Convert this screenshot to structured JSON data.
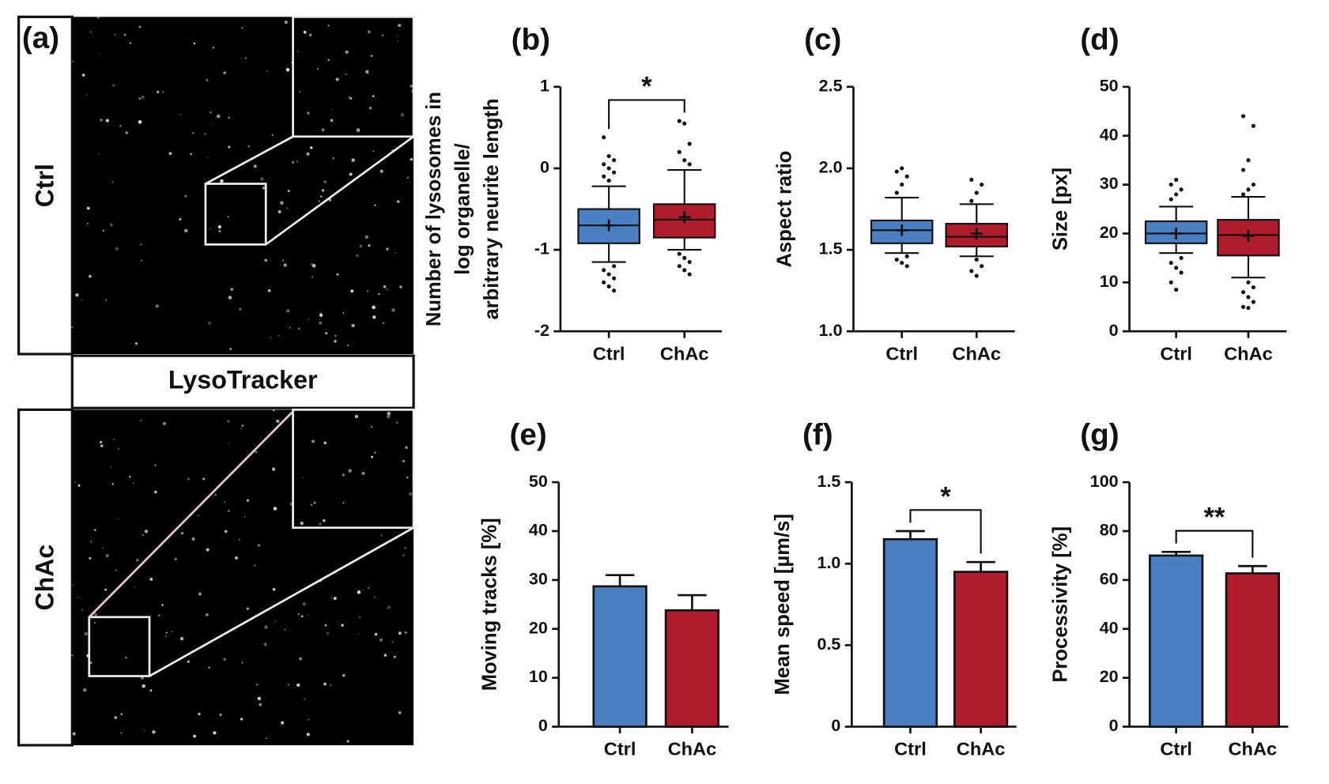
{
  "image_panel": {
    "label": "(a)",
    "rows": [
      "Ctrl",
      "ChAc"
    ],
    "caption": "LysoTracker"
  },
  "chart_data": [
    {
      "type": "box",
      "title": "(b)",
      "ylabel": [
        "Number of lysosomes in",
        "log organelle/",
        "arbitrary neurite length"
      ],
      "categories": [
        "Ctrl",
        "ChAc"
      ],
      "colors": [
        "#4a7fc1",
        "#b01c2b"
      ],
      "boxes": [
        {
          "whislo": -1.15,
          "q1": -0.92,
          "median": -0.7,
          "q3": -0.5,
          "whishi": -0.22,
          "mean": -0.7,
          "outliers": [
            0.38,
            0.15,
            0.1,
            0.05,
            0,
            -0.05,
            -0.1,
            -0.15,
            -1.2,
            -1.25,
            -1.3,
            -1.35,
            -1.4,
            -1.45,
            -1.5
          ]
        },
        {
          "whislo": -1.0,
          "q1": -0.85,
          "median": -0.63,
          "q3": -0.44,
          "whishi": -0.02,
          "mean": -0.6,
          "outliers": [
            0.58,
            0.55,
            0.3,
            0.2,
            0.1,
            0.05,
            -1.05,
            -1.1,
            -1.15,
            -1.2,
            -1.25,
            -1.3
          ]
        }
      ],
      "ylim": [
        -2,
        1
      ],
      "yticks": [
        -2,
        -1,
        0,
        1
      ],
      "annotation": "*"
    },
    {
      "type": "box",
      "title": "(c)",
      "ylabel": [
        "Aspect ratio"
      ],
      "categories": [
        "Ctrl",
        "ChAc"
      ],
      "colors": [
        "#4a7fc1",
        "#b01c2b"
      ],
      "boxes": [
        {
          "whislo": 1.48,
          "q1": 1.54,
          "median": 1.62,
          "q3": 1.68,
          "whishi": 1.82,
          "mean": 1.62,
          "outliers": [
            1.85,
            1.9,
            1.95,
            1.98,
            2.0,
            1.46,
            1.44,
            1.42,
            1.4
          ]
        },
        {
          "whislo": 1.46,
          "q1": 1.52,
          "median": 1.58,
          "q3": 1.66,
          "whishi": 1.78,
          "mean": 1.6,
          "outliers": [
            1.8,
            1.85,
            1.9,
            1.93,
            1.44,
            1.4,
            1.37,
            1.34
          ]
        }
      ],
      "ylim": [
        1,
        2.5
      ],
      "yticks": [
        {
          "value": 1,
          "label": "1.0"
        },
        1.5,
        {
          "value": 2,
          "label": "2.0"
        },
        2.5
      ]
    },
    {
      "type": "box",
      "title": "(d)",
      "ylabel": [
        "Size [px]"
      ],
      "categories": [
        "Ctrl",
        "ChAc"
      ],
      "colors": [
        "#4a7fc1",
        "#b01c2b"
      ],
      "boxes": [
        {
          "whislo": 16,
          "q1": 18,
          "median": 20,
          "q3": 22.5,
          "whishi": 25.5,
          "mean": 20,
          "outliers": [
            27,
            28,
            29,
            30,
            31,
            15,
            14,
            13,
            12,
            10,
            8.5
          ]
        },
        {
          "whislo": 11,
          "q1": 15.5,
          "median": 19.7,
          "q3": 22.8,
          "whishi": 27.5,
          "mean": 19.5,
          "outliers": [
            28,
            29,
            30,
            33,
            35,
            42,
            44,
            10,
            9,
            8,
            7,
            6,
            5,
            4.8
          ]
        }
      ],
      "ylim": [
        0,
        50
      ],
      "yticks": [
        0,
        10,
        20,
        30,
        40,
        50
      ]
    },
    {
      "type": "bar",
      "title": "(e)",
      "ylabel": [
        "Moving tracks [%]"
      ],
      "categories": [
        "Ctrl",
        "ChAc"
      ],
      "colors": [
        "#4a7fc1",
        "#b01c2b"
      ],
      "values": [
        28.7,
        23.8
      ],
      "errors": [
        2.3,
        3.1
      ],
      "ylim": [
        0,
        50
      ],
      "yticks": [
        0,
        10,
        20,
        30,
        40,
        50
      ]
    },
    {
      "type": "bar",
      "title": "(f)",
      "ylabel": [
        "Mean speed [µm/s]"
      ],
      "categories": [
        "Ctrl",
        "ChAc"
      ],
      "colors": [
        "#4a7fc1",
        "#b01c2b"
      ],
      "values": [
        1.15,
        0.95
      ],
      "errors": [
        0.05,
        0.06
      ],
      "ylim": [
        0,
        1.5
      ],
      "yticks": [
        0,
        0.5,
        {
          "value": 1,
          "label": "1.0"
        },
        1.5
      ],
      "annotation": "*"
    },
    {
      "type": "bar",
      "title": "(g)",
      "ylabel": [
        "Processivity [%]"
      ],
      "categories": [
        "Ctrl",
        "ChAc"
      ],
      "colors": [
        "#4a7fc1",
        "#b01c2b"
      ],
      "values": [
        70,
        62.7
      ],
      "errors": [
        1.5,
        3
      ],
      "ylim": [
        0,
        100
      ],
      "yticks": [
        0,
        20,
        40,
        60,
        80,
        100
      ],
      "annotation": "**"
    }
  ]
}
